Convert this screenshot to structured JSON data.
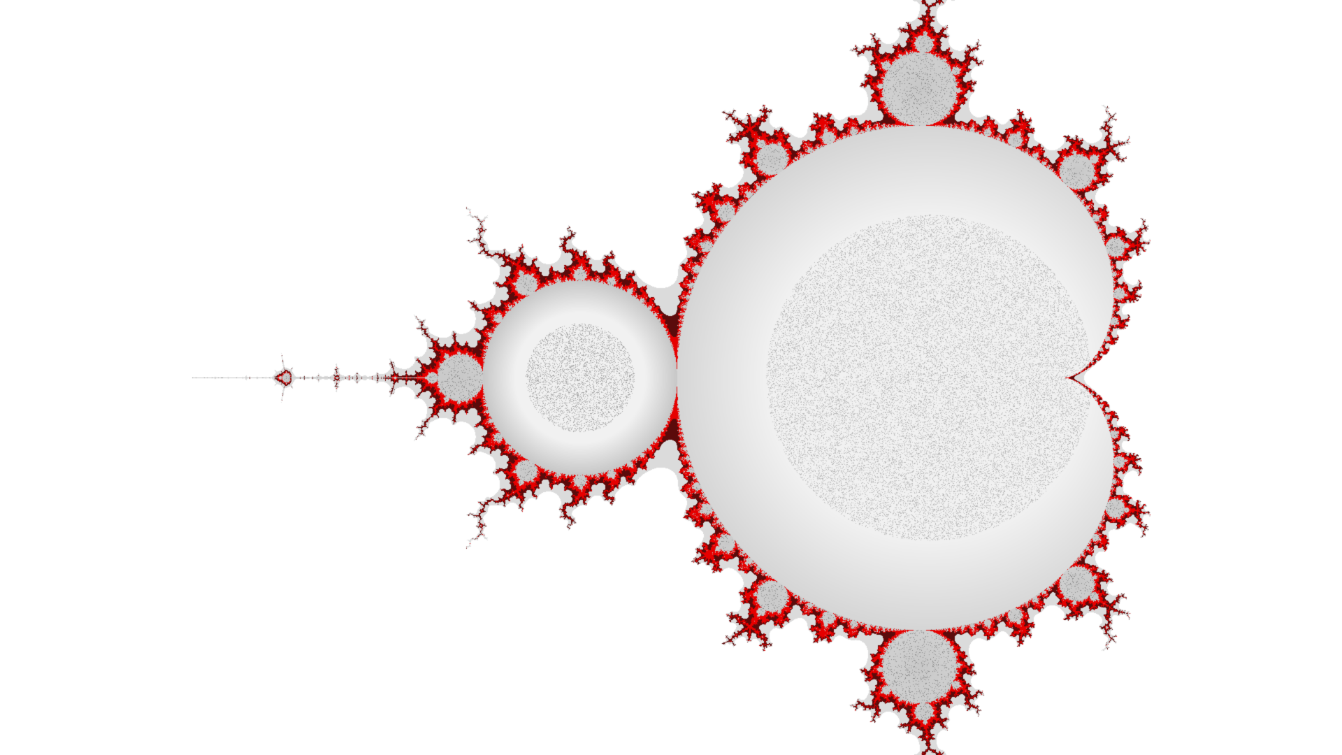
{
  "image": {
    "subject": "Mandelbrot set",
    "render": {
      "complex_plane": {
        "center_re": -0.765,
        "center_im": 0.0,
        "re_min": -2.495,
        "re_max": 0.965
      },
      "max_iterations": 140,
      "colors": {
        "background": "#ffffff",
        "boundary_accent": "#e60000",
        "interior_light": "#f1f1f1",
        "interior_mid": "#c8c8c8",
        "interior_dark": "#5a5a5a",
        "filament": "#111111"
      }
    }
  }
}
